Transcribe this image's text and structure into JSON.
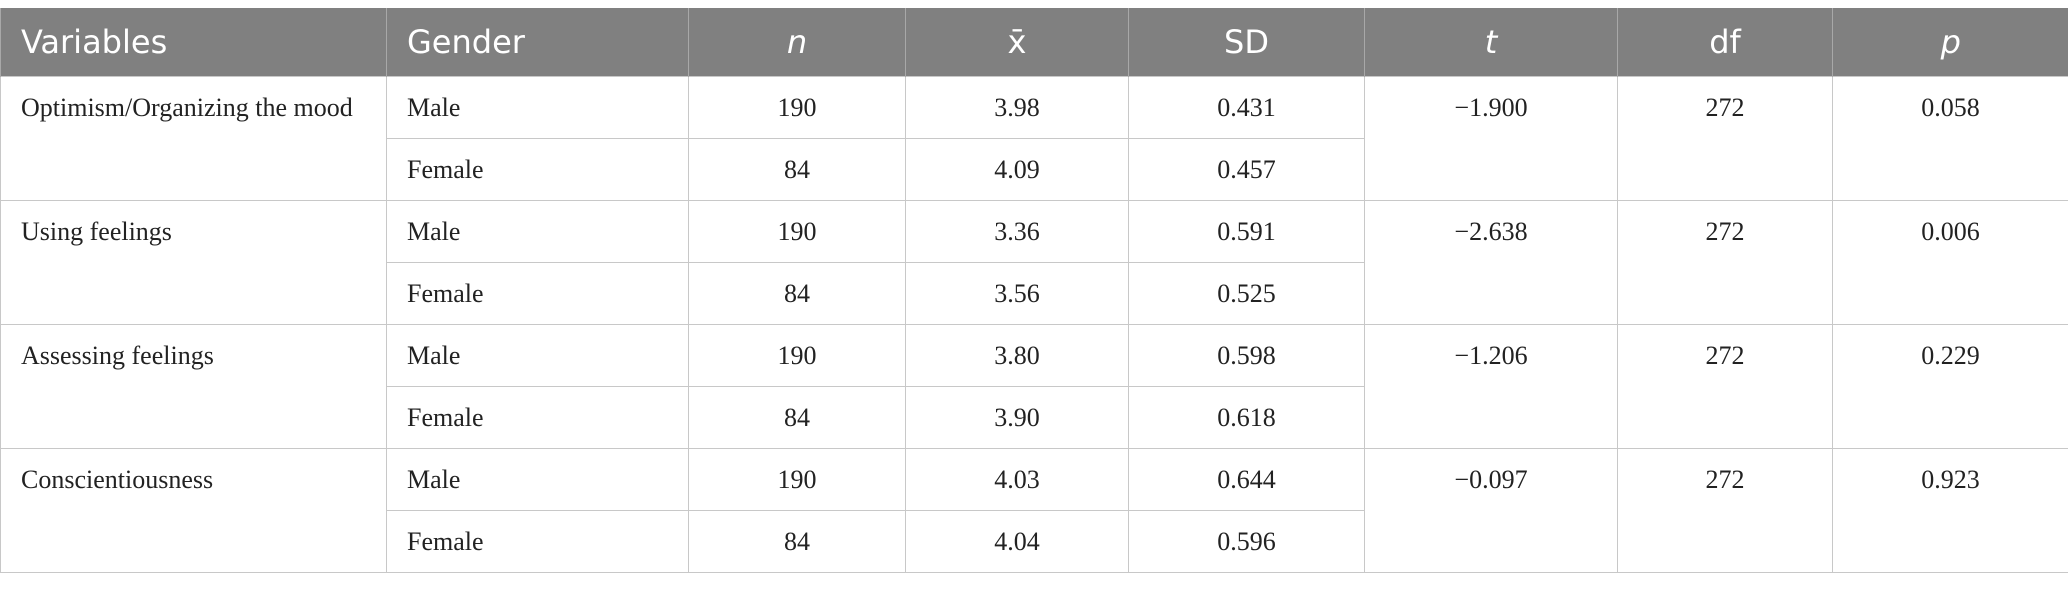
{
  "table": {
    "columns": [
      "Variables",
      "Gender",
      "n",
      "x̄",
      "SD",
      "t",
      "df",
      "p"
    ],
    "groups": [
      {
        "variable": "Optimism/Organizing the mood",
        "t": "−1.900",
        "df": "272",
        "p": "0.058",
        "rows": [
          {
            "gender": "Male",
            "n": "190",
            "mean": "3.98",
            "sd": "0.431"
          },
          {
            "gender": "Female",
            "n": "84",
            "mean": "4.09",
            "sd": "0.457"
          }
        ]
      },
      {
        "variable": "Using feelings",
        "t": "−2.638",
        "df": "272",
        "p": "0.006",
        "rows": [
          {
            "gender": "Male",
            "n": "190",
            "mean": "3.36",
            "sd": "0.591"
          },
          {
            "gender": "Female",
            "n": "84",
            "mean": "3.56",
            "sd": "0.525"
          }
        ]
      },
      {
        "variable": "Assessing feelings",
        "t": "−1.206",
        "df": "272",
        "p": "0.229",
        "rows": [
          {
            "gender": "Male",
            "n": "190",
            "mean": "3.80",
            "sd": "0.598"
          },
          {
            "gender": "Female",
            "n": "84",
            "mean": "3.90",
            "sd": "0.618"
          }
        ]
      },
      {
        "variable": "Conscientiousness",
        "t": "−0.097",
        "df": "272",
        "p": "0.923",
        "rows": [
          {
            "gender": "Male",
            "n": "190",
            "mean": "4.03",
            "sd": "0.644"
          },
          {
            "gender": "Female",
            "n": "84",
            "mean": "4.04",
            "sd": "0.596"
          }
        ]
      }
    ]
  }
}
